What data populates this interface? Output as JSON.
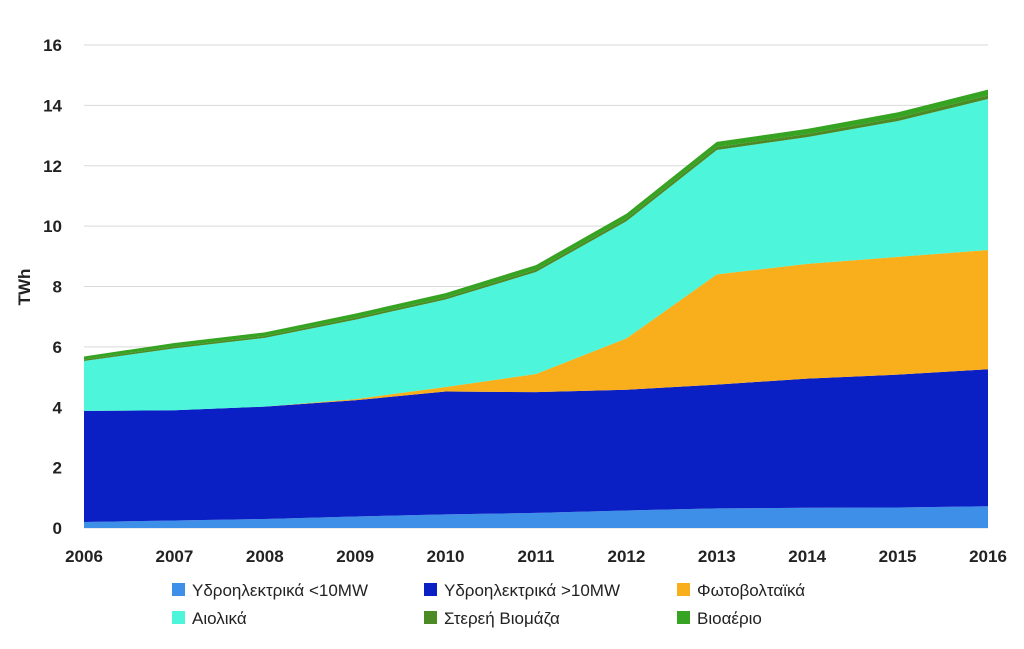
{
  "chart_data": {
    "type": "area",
    "stacked": true,
    "title": "",
    "xlabel": "",
    "ylabel": "TWh",
    "x": [
      "2006",
      "2007",
      "2008",
      "2009",
      "2010",
      "2011",
      "2012",
      "2013",
      "2014",
      "2015",
      "2016"
    ],
    "ylim": [
      0,
      16
    ],
    "yticks": [
      "0",
      "2",
      "4",
      "6",
      "8",
      "10",
      "12",
      "14",
      "16"
    ],
    "grid": true,
    "legend_position": "bottom",
    "series": [
      {
        "name": "Υδροηλεκτρικά <10MW",
        "color": "#3d8fe8",
        "values": [
          0.2,
          0.25,
          0.3,
          0.38,
          0.45,
          0.5,
          0.58,
          0.65,
          0.67,
          0.68,
          0.72
        ]
      },
      {
        "name": "Υδροηλεκτρικά >10MW",
        "color": "#0a1fc4",
        "values": [
          3.68,
          3.65,
          3.72,
          3.85,
          4.07,
          4.0,
          4.0,
          4.1,
          4.28,
          4.4,
          4.54
        ]
      },
      {
        "name": "Φωτοβολταϊκά",
        "color": "#f9ae1b",
        "values": [
          0.0,
          0.0,
          0.0,
          0.04,
          0.15,
          0.6,
          1.7,
          3.65,
          3.8,
          3.9,
          3.95
        ]
      },
      {
        "name": "Αιολικά",
        "color": "#4df5da",
        "values": [
          1.65,
          2.05,
          2.28,
          2.63,
          2.9,
          3.38,
          3.88,
          4.12,
          4.2,
          4.5,
          5.0
        ]
      },
      {
        "name": "Στερεή Βιομάζα",
        "color": "#4b8a25",
        "values": [
          0.05,
          0.06,
          0.06,
          0.07,
          0.07,
          0.08,
          0.09,
          0.1,
          0.1,
          0.11,
          0.12
        ]
      },
      {
        "name": "Βιοαέριο",
        "color": "#37a322",
        "values": [
          0.1,
          0.12,
          0.12,
          0.13,
          0.14,
          0.15,
          0.16,
          0.17,
          0.17,
          0.18,
          0.19
        ]
      }
    ]
  }
}
